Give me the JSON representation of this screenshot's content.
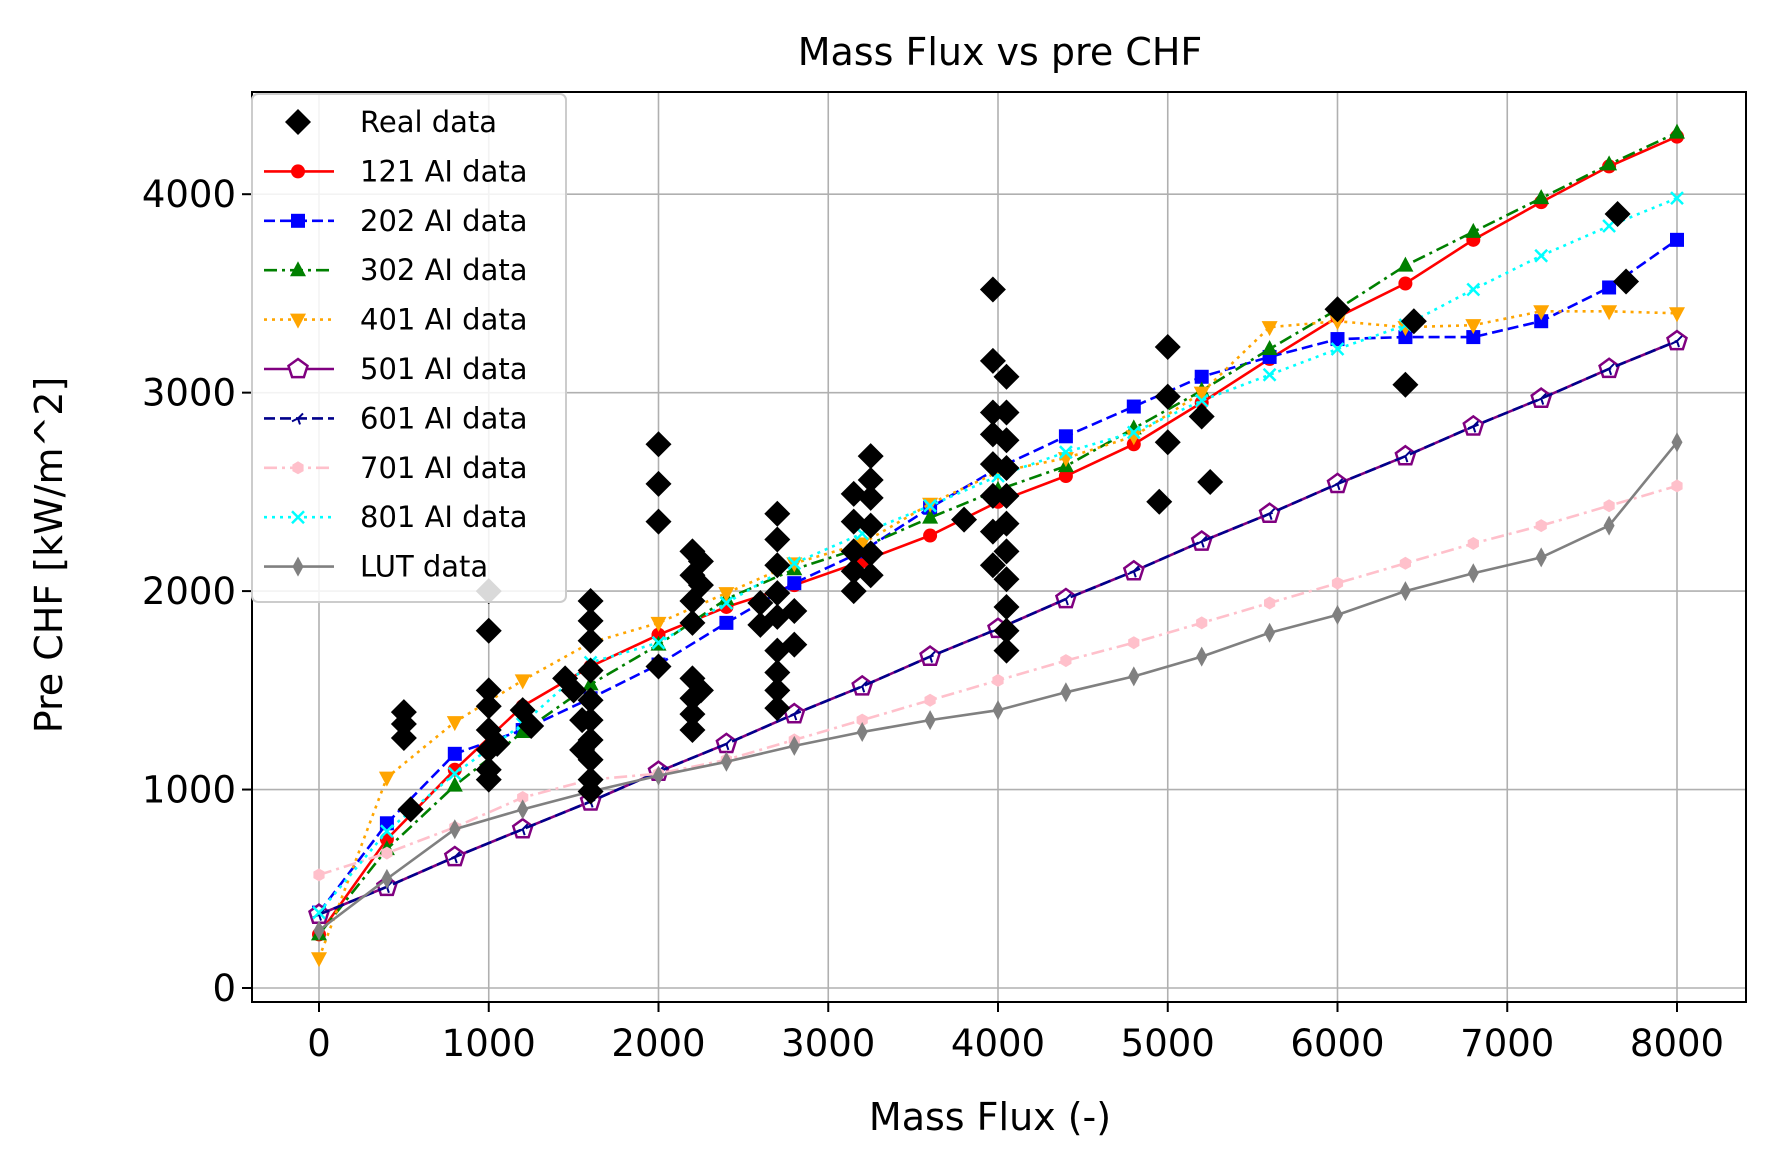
{
  "chart_data": {
    "type": "scatter",
    "title": "Mass Flux vs pre CHF",
    "xlabel": "Mass Flux (-)",
    "ylabel": "Pre CHF [kW/m^2]",
    "xlim": [
      -400,
      8400
    ],
    "ylim": [
      -80,
      4540
    ],
    "xticks": [
      0,
      1000,
      2000,
      3000,
      4000,
      5000,
      6000,
      7000,
      8000
    ],
    "yticks": [
      0,
      1000,
      2000,
      3000,
      4000
    ],
    "grid": true,
    "legend_position": "top-left",
    "real_data": {
      "name": "Real data",
      "color": "#000000",
      "points": [
        [
          500,
          1390
        ],
        [
          500,
          1330
        ],
        [
          500,
          1260
        ],
        [
          540,
          900
        ],
        [
          1000,
          2000
        ],
        [
          1000,
          1800
        ],
        [
          1000,
          1500
        ],
        [
          1000,
          1420
        ],
        [
          1000,
          1300
        ],
        [
          1000,
          1200
        ],
        [
          1000,
          1100
        ],
        [
          1000,
          1050
        ],
        [
          1050,
          1230
        ],
        [
          1200,
          1400
        ],
        [
          1250,
          1320
        ],
        [
          1450,
          1560
        ],
        [
          1500,
          1500
        ],
        [
          1550,
          1350
        ],
        [
          1550,
          1200
        ],
        [
          1600,
          1950
        ],
        [
          1600,
          1850
        ],
        [
          1600,
          1750
        ],
        [
          1600,
          1600
        ],
        [
          1600,
          1450
        ],
        [
          1600,
          1350
        ],
        [
          1600,
          1250
        ],
        [
          1600,
          1150
        ],
        [
          1600,
          1050
        ],
        [
          1600,
          990
        ],
        [
          2000,
          2740
        ],
        [
          2000,
          2540
        ],
        [
          2000,
          2350
        ],
        [
          2000,
          1620
        ],
        [
          2200,
          2200
        ],
        [
          2200,
          2080
        ],
        [
          2200,
          1950
        ],
        [
          2200,
          1840
        ],
        [
          2200,
          1560
        ],
        [
          2200,
          1460
        ],
        [
          2200,
          1380
        ],
        [
          2200,
          1300
        ],
        [
          2250,
          2150
        ],
        [
          2250,
          2030
        ],
        [
          2250,
          1500
        ],
        [
          2600,
          1940
        ],
        [
          2600,
          1830
        ],
        [
          2700,
          2390
        ],
        [
          2700,
          2260
        ],
        [
          2700,
          2130
        ],
        [
          2700,
          1990
        ],
        [
          2700,
          1870
        ],
        [
          2700,
          1700
        ],
        [
          2700,
          1590
        ],
        [
          2700,
          1500
        ],
        [
          2700,
          1410
        ],
        [
          2800,
          1900
        ],
        [
          2800,
          1730
        ],
        [
          3150,
          2490
        ],
        [
          3150,
          2350
        ],
        [
          3150,
          2200
        ],
        [
          3150,
          2100
        ],
        [
          3150,
          2000
        ],
        [
          3250,
          2680
        ],
        [
          3250,
          2560
        ],
        [
          3250,
          2470
        ],
        [
          3250,
          2330
        ],
        [
          3250,
          2190
        ],
        [
          3250,
          2080
        ],
        [
          3800,
          2360
        ],
        [
          3970,
          3520
        ],
        [
          3970,
          3160
        ],
        [
          3970,
          2900
        ],
        [
          3970,
          2790
        ],
        [
          3970,
          2640
        ],
        [
          3970,
          2480
        ],
        [
          3970,
          2300
        ],
        [
          3970,
          2130
        ],
        [
          4050,
          3080
        ],
        [
          4050,
          2900
        ],
        [
          4050,
          2760
        ],
        [
          4050,
          2620
        ],
        [
          4050,
          2480
        ],
        [
          4050,
          2340
        ],
        [
          4050,
          2200
        ],
        [
          4050,
          2060
        ],
        [
          4050,
          1920
        ],
        [
          4050,
          1800
        ],
        [
          4050,
          1700
        ],
        [
          5000,
          3230
        ],
        [
          5000,
          2980
        ],
        [
          5000,
          2750
        ],
        [
          4950,
          2450
        ],
        [
          5200,
          2880
        ],
        [
          5250,
          2550
        ],
        [
          6000,
          3420
        ],
        [
          6450,
          3360
        ],
        [
          6400,
          3040
        ],
        [
          7650,
          3900
        ],
        [
          7700,
          3560
        ]
      ]
    },
    "series": [
      {
        "name": "121 AI data",
        "color": "#ff0000",
        "marker": "circle",
        "linestyle": "solid",
        "x": [
          0,
          400,
          800,
          1200,
          1600,
          2000,
          2400,
          2800,
          3200,
          3600,
          4000,
          4400,
          4800,
          5200,
          5600,
          6000,
          6400,
          6800,
          7200,
          7600,
          8000
        ],
        "values": [
          270,
          750,
          1100,
          1420,
          1620,
          1780,
          1920,
          2030,
          2150,
          2280,
          2450,
          2580,
          2740,
          2950,
          3170,
          3380,
          3550,
          3770,
          3960,
          4140,
          4290
        ]
      },
      {
        "name": "202 AI data",
        "color": "#0000ff",
        "marker": "square",
        "linestyle": "dashed",
        "x": [
          0,
          400,
          800,
          1200,
          1600,
          2000,
          2400,
          2800,
          3200,
          3600,
          4000,
          4400,
          4800,
          5200,
          5600,
          6000,
          6400,
          6800,
          7200,
          7600,
          8000
        ],
        "values": [
          380,
          830,
          1180,
          1300,
          1460,
          1630,
          1840,
          2040,
          2200,
          2420,
          2620,
          2780,
          2930,
          3080,
          3180,
          3270,
          3280,
          3280,
          3360,
          3530,
          3770
        ]
      },
      {
        "name": "302 AI data",
        "color": "#008000",
        "marker": "triangle-up",
        "linestyle": "dashdot",
        "x": [
          0,
          400,
          800,
          1200,
          1600,
          2000,
          2400,
          2800,
          3200,
          3600,
          4000,
          4400,
          4800,
          5200,
          5600,
          6000,
          6400,
          6800,
          7200,
          7600,
          8000
        ],
        "values": [
          270,
          700,
          1020,
          1290,
          1530,
          1730,
          1960,
          2110,
          2220,
          2370,
          2510,
          2630,
          2820,
          3010,
          3220,
          3420,
          3640,
          3810,
          3980,
          4150,
          4310
        ]
      },
      {
        "name": "401 AI data",
        "color": "#ffa500",
        "marker": "triangle-down",
        "linestyle": "dotted",
        "x": [
          0,
          400,
          800,
          1200,
          1600,
          2000,
          2400,
          2800,
          3200,
          3600,
          4000,
          4400,
          4800,
          5200,
          5600,
          6000,
          6400,
          6800,
          7200,
          7600,
          8000
        ],
        "values": [
          150,
          1060,
          1340,
          1550,
          1740,
          1840,
          1990,
          2140,
          2240,
          2440,
          2600,
          2670,
          2780,
          3000,
          3330,
          3360,
          3330,
          3340,
          3410,
          3410,
          3400
        ]
      },
      {
        "name": "501 AI data",
        "color": "#800080",
        "marker": "pentagon",
        "linestyle": "solid",
        "x": [
          0,
          400,
          800,
          1200,
          1600,
          2000,
          2400,
          2800,
          3200,
          3600,
          4000,
          4400,
          4800,
          5200,
          5600,
          6000,
          6400,
          6800,
          7200,
          7600,
          8000
        ],
        "values": [
          370,
          510,
          660,
          800,
          940,
          1090,
          1230,
          1380,
          1520,
          1670,
          1810,
          1960,
          2100,
          2250,
          2390,
          2540,
          2680,
          2830,
          2970,
          3120,
          3260
        ]
      },
      {
        "name": "601 AI data",
        "color": "#00008b",
        "marker": "tri",
        "linestyle": "dashed",
        "x": [
          0,
          400,
          800,
          1200,
          1600,
          2000,
          2400,
          2800,
          3200,
          3600,
          4000,
          4400,
          4800,
          5200,
          5600,
          6000,
          6400,
          6800,
          7200,
          7600,
          8000
        ],
        "values": [
          370,
          510,
          660,
          800,
          940,
          1090,
          1230,
          1380,
          1520,
          1670,
          1810,
          1960,
          2100,
          2250,
          2390,
          2540,
          2680,
          2830,
          2970,
          3120,
          3260
        ]
      },
      {
        "name": "701 AI data",
        "color": "#ffc0cb",
        "marker": "hexagon",
        "linestyle": "dashdot",
        "x": [
          0,
          400,
          800,
          1200,
          1600,
          2000,
          2400,
          2800,
          3200,
          3600,
          4000,
          4400,
          4800,
          5200,
          5600,
          6000,
          6400,
          6800,
          7200,
          7600,
          8000
        ],
        "values": [
          570,
          680,
          810,
          960,
          1050,
          1080,
          1150,
          1250,
          1350,
          1450,
          1550,
          1650,
          1740,
          1840,
          1940,
          2040,
          2140,
          2240,
          2330,
          2430,
          2530
        ]
      },
      {
        "name": "801 AI data",
        "color": "#00ffff",
        "marker": "x",
        "linestyle": "dotted",
        "x": [
          0,
          400,
          800,
          1200,
          1600,
          2000,
          2400,
          2800,
          3200,
          3600,
          4000,
          4400,
          4800,
          5200,
          5600,
          6000,
          6400,
          6800,
          7200,
          7600,
          8000
        ],
        "values": [
          380,
          790,
          1080,
          1330,
          1640,
          1740,
          1940,
          2140,
          2290,
          2430,
          2580,
          2700,
          2800,
          2960,
          3090,
          3220,
          3340,
          3520,
          3690,
          3840,
          3980
        ]
      },
      {
        "name": "LUT data",
        "color": "#808080",
        "marker": "thin-diamond",
        "linestyle": "solid",
        "x": [
          0,
          400,
          800,
          1200,
          1600,
          2000,
          2400,
          2800,
          3200,
          3600,
          4000,
          4400,
          4800,
          5200,
          5600,
          6000,
          6400,
          6800,
          7200,
          7600,
          8000
        ],
        "values": [
          290,
          550,
          800,
          900,
          990,
          1070,
          1140,
          1220,
          1290,
          1350,
          1400,
          1490,
          1570,
          1670,
          1790,
          1880,
          2000,
          2090,
          2170,
          2330,
          2750
        ]
      }
    ]
  }
}
